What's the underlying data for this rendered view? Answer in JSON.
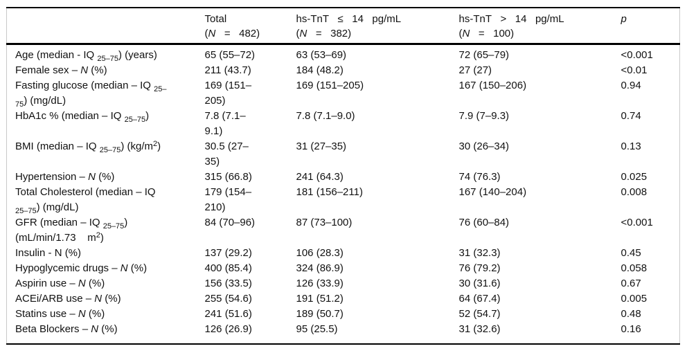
{
  "table": {
    "title_semantic": "Baseline characteristics by hs-TnT group",
    "headers": {
      "row_label": "",
      "total_html": "Total<br>(<i>N</i>&nbsp;&nbsp;&nbsp;=&nbsp;&nbsp;&nbsp;482)",
      "tnt_le_html": "hs-TnT&nbsp;&nbsp;&nbsp;≤&nbsp;&nbsp;&nbsp;14&nbsp;&nbsp;&nbsp;pg/mL<br>(<i>N</i>&nbsp;&nbsp;&nbsp;=&nbsp;&nbsp;&nbsp;382)",
      "tnt_gt_html": "hs-TnT&nbsp;&nbsp;&nbsp;&gt;&nbsp;&nbsp;&nbsp;14&nbsp;&nbsp;&nbsp;pg/mL<br>(<i>N</i>&nbsp;&nbsp;&nbsp;=&nbsp;&nbsp;&nbsp;100)",
      "p_html": "<i>p</i>"
    },
    "rows": [
      {
        "label_html": "Age (median - IQ <sub>25–75</sub>) (years)",
        "total": "65 (55–72)",
        "tnt_le": "63 (53–69)",
        "tnt_gt": "72 (65–79)",
        "p": "<0.001"
      },
      {
        "label_html": "Female sex – <i>N</i> (%)",
        "total": "211 (43.7)",
        "tnt_le": "184 (48.2)",
        "tnt_gt": "27 (27)",
        "p": "<0.01"
      },
      {
        "label_html": "Fasting glucose (median – IQ <sub>25–</sub><br><sub>75</sub>) (mg/dL)",
        "total": "169 (151–\n205)",
        "tnt_le": "169 (151–205)",
        "tnt_gt": "167 (150–206)",
        "p": "0.94"
      },
      {
        "label_html": "HbA1c % (median – IQ <sub>25–75</sub>)",
        "total": "7.8 (7.1–\n9.1)",
        "tnt_le": "7.8 (7.1–9.0)",
        "tnt_gt": "7.9 (7–9.3)",
        "p": "0.74"
      },
      {
        "label_html": "BMI (median – IQ <sub>25–75</sub>) (kg/m<sup>2</sup>)",
        "total": "30.5 (27–\n35)",
        "tnt_le": "31 (27–35)",
        "tnt_gt": "30 (26–34)",
        "p": "0.13"
      },
      {
        "label_html": "Hypertension – <i>N</i> (%)",
        "total": "315 (66.8)",
        "tnt_le": "241 (64.3)",
        "tnt_gt": "74 (76.3)",
        "p": "0.025"
      },
      {
        "label_html": "Total Cholesterol (median – IQ<br><sub>25–75</sub>) (mg/dL)",
        "total": "179 (154–\n210)",
        "tnt_le": "181 (156–211)",
        "tnt_gt": "167 (140–204)",
        "p": "0.008"
      },
      {
        "label_html": "GFR (median – IQ <sub>25–75</sub>)<br>(mL/min/1.73&nbsp;&nbsp;&nbsp;&nbsp;m<sup>2</sup>)",
        "total": "84 (70–96)",
        "tnt_le": "87 (73–100)",
        "tnt_gt": "76 (60–84)",
        "p": "<0.001"
      },
      {
        "label_html": "Insulin - N (%)",
        "total": "137 (29.2)",
        "tnt_le": "106 (28.3)",
        "tnt_gt": "31 (32.3)",
        "p": "0.45"
      },
      {
        "label_html": "Hypoglycemic drugs – <i>N</i> (%)",
        "total": "400 (85.4)",
        "tnt_le": "324 (86.9)",
        "tnt_gt": "76 (79.2)",
        "p": "0.058"
      },
      {
        "label_html": "Aspirin use – <i>N</i> (%)",
        "total": "156 (33.5)",
        "tnt_le": "126 (33.9)",
        "tnt_gt": "30 (31.6)",
        "p": "0.67"
      },
      {
        "label_html": "ACEi/ARB use – <i>N</i> (%)",
        "total": "255 (54.6)",
        "tnt_le": "191 (51.2)",
        "tnt_gt": "64 (67.4)",
        "p": "0.005"
      },
      {
        "label_html": "Statins use – <i>N</i> (%)",
        "total": "241 (51.6)",
        "tnt_le": "189 (50.7)",
        "tnt_gt": "52 (54.7)",
        "p": "0.48"
      },
      {
        "label_html": "Beta Blockers – <i>N</i> (%)",
        "total": "126 (26.9)",
        "tnt_le": "95 (25.5)",
        "tnt_gt": "31 (32.6)",
        "p": "0.16"
      }
    ]
  },
  "colors": {
    "background": "#ffffff",
    "text": "#111111",
    "horizontal_rule": "#000000",
    "side_border": "#c9c9c9"
  }
}
